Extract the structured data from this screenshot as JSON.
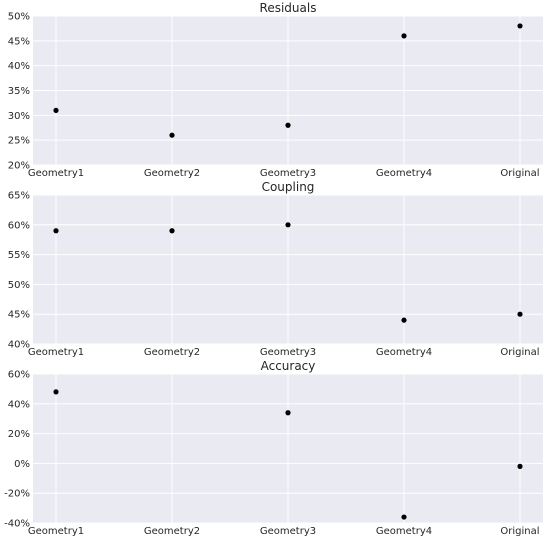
{
  "chart_data": [
    {
      "type": "scatter",
      "title": "Residuals",
      "categories": [
        "Geometry1",
        "Geometry2",
        "Geometry3",
        "Geometry4",
        "Original"
      ],
      "values": [
        31,
        26,
        28,
        46,
        48
      ],
      "unit": "%",
      "ylim": [
        20,
        50
      ],
      "yticks": [
        20,
        25,
        30,
        35,
        40,
        45,
        50
      ],
      "xlabel": "",
      "ylabel": "",
      "grid": true
    },
    {
      "type": "scatter",
      "title": "Coupling",
      "categories": [
        "Geometry1",
        "Geometry2",
        "Geometry3",
        "Geometry4",
        "Original"
      ],
      "values": [
        59,
        59,
        60,
        44,
        45
      ],
      "unit": "%",
      "ylim": [
        40,
        65
      ],
      "yticks": [
        40,
        45,
        50,
        55,
        60,
        65
      ],
      "xlabel": "",
      "ylabel": "",
      "grid": true
    },
    {
      "type": "scatter",
      "title": "Accuracy",
      "categories": [
        "Geometry1",
        "Geometry2",
        "Geometry3",
        "Geometry4",
        "Original"
      ],
      "values": [
        48,
        null,
        34,
        -36,
        -2
      ],
      "unit": "%",
      "ylim": [
        -40,
        60
      ],
      "yticks": [
        -40,
        -20,
        0,
        20,
        40,
        60
      ],
      "xlabel": "",
      "ylabel": "",
      "grid": true
    }
  ],
  "colors": {
    "background": "#eaeaf2",
    "grid": "#ffffff",
    "marker": "#000000",
    "text": "#262626"
  }
}
